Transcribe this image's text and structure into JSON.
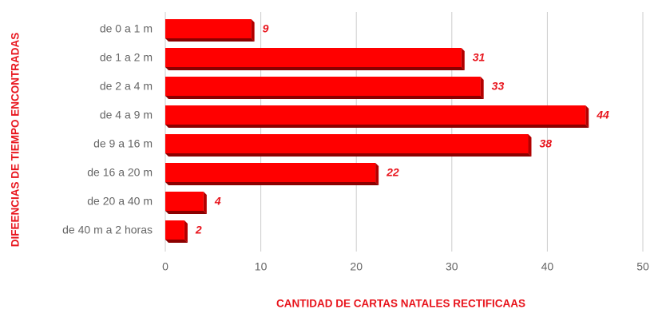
{
  "chart_data": {
    "type": "bar",
    "orientation": "horizontal",
    "categories": [
      "de 0 a 1 m",
      "de 1 a 2 m",
      "de 2 a 4 m",
      "de 4 a 9 m",
      "de 9 a 16 m",
      "de 16 a 20 m",
      "de 20 a 40 m",
      "de 40 m a 2 horas"
    ],
    "values": [
      9,
      31,
      33,
      44,
      38,
      22,
      4,
      2
    ],
    "color": "#ff0000",
    "xlim": [
      0,
      50
    ],
    "xticks": [
      0,
      10,
      20,
      30,
      40,
      50
    ],
    "grid": true,
    "x_label": "CANTIDAD DE CARTAS NATALES RECTIFICAAS",
    "y_label": "DIFEENCIAS DE TIEMPO ENCONTRADAS"
  }
}
